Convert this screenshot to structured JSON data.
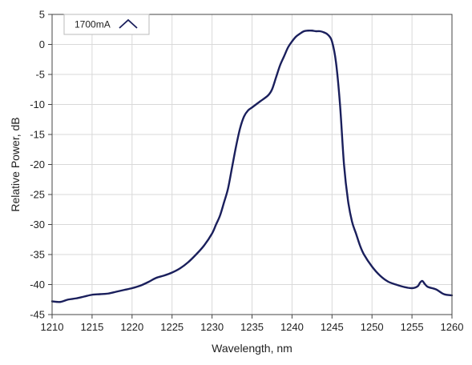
{
  "chart_data": {
    "type": "line",
    "xlabel": "Wavelength, nm",
    "ylabel": "Relative Power, dB",
    "xlim": [
      1210,
      1260
    ],
    "ylim": [
      -45,
      5
    ],
    "x_ticks": [
      1210,
      1215,
      1220,
      1225,
      1230,
      1235,
      1240,
      1245,
      1250,
      1255,
      1260
    ],
    "y_ticks": [
      5,
      0,
      -5,
      -10,
      -15,
      -20,
      -25,
      -30,
      -35,
      -40,
      -45
    ],
    "y_tick_labels": [
      "5",
      "0",
      "-5",
      "-10",
      "-15",
      "-20",
      "-25",
      "-30",
      "-35",
      "-40",
      "-45"
    ],
    "grid": true,
    "legend_position": "top-left",
    "series": [
      {
        "name": "1700mA",
        "color": "#1a1f5c",
        "points": [
          [
            1210,
            -42.8
          ],
          [
            1211,
            -42.9
          ],
          [
            1212,
            -42.5
          ],
          [
            1213,
            -42.3
          ],
          [
            1214,
            -42.0
          ],
          [
            1215,
            -41.7
          ],
          [
            1216,
            -41.6
          ],
          [
            1217,
            -41.5
          ],
          [
            1218,
            -41.2
          ],
          [
            1219,
            -40.9
          ],
          [
            1220,
            -40.6
          ],
          [
            1221,
            -40.2
          ],
          [
            1222,
            -39.6
          ],
          [
            1223,
            -38.9
          ],
          [
            1224,
            -38.5
          ],
          [
            1225,
            -38.0
          ],
          [
            1226,
            -37.3
          ],
          [
            1227,
            -36.3
          ],
          [
            1228,
            -35.0
          ],
          [
            1229,
            -33.5
          ],
          [
            1230,
            -31.5
          ],
          [
            1230.5,
            -30.0
          ],
          [
            1231,
            -28.5
          ],
          [
            1231.5,
            -26.3
          ],
          [
            1232,
            -24.0
          ],
          [
            1232.5,
            -20.5
          ],
          [
            1233,
            -17.0
          ],
          [
            1233.5,
            -14.0
          ],
          [
            1234,
            -12.0
          ],
          [
            1234.5,
            -11.0
          ],
          [
            1235,
            -10.5
          ],
          [
            1235.5,
            -10.0
          ],
          [
            1236,
            -9.5
          ],
          [
            1237,
            -8.5
          ],
          [
            1237.5,
            -7.5
          ],
          [
            1238,
            -5.5
          ],
          [
            1238.5,
            -3.5
          ],
          [
            1239,
            -2.0
          ],
          [
            1239.5,
            -0.5
          ],
          [
            1240,
            0.5
          ],
          [
            1240.5,
            1.3
          ],
          [
            1241,
            1.8
          ],
          [
            1241.5,
            2.2
          ],
          [
            1242,
            2.3
          ],
          [
            1242.5,
            2.3
          ],
          [
            1243,
            2.2
          ],
          [
            1243.5,
            2.2
          ],
          [
            1244,
            2.0
          ],
          [
            1244.5,
            1.6
          ],
          [
            1245,
            0.5
          ],
          [
            1245.5,
            -3.0
          ],
          [
            1246,
            -10.0
          ],
          [
            1246.5,
            -20.0
          ],
          [
            1247,
            -26.0
          ],
          [
            1247.5,
            -29.5
          ],
          [
            1248,
            -31.5
          ],
          [
            1248.5,
            -33.5
          ],
          [
            1249,
            -35.0
          ],
          [
            1250,
            -37.0
          ],
          [
            1251,
            -38.5
          ],
          [
            1252,
            -39.5
          ],
          [
            1253,
            -40.0
          ],
          [
            1254,
            -40.4
          ],
          [
            1255,
            -40.6
          ],
          [
            1255.7,
            -40.3
          ],
          [
            1256,
            -39.7
          ],
          [
            1256.3,
            -39.4
          ],
          [
            1256.6,
            -39.9
          ],
          [
            1257,
            -40.4
          ],
          [
            1258,
            -40.8
          ],
          [
            1259,
            -41.6
          ],
          [
            1260,
            -41.8
          ]
        ]
      }
    ]
  }
}
